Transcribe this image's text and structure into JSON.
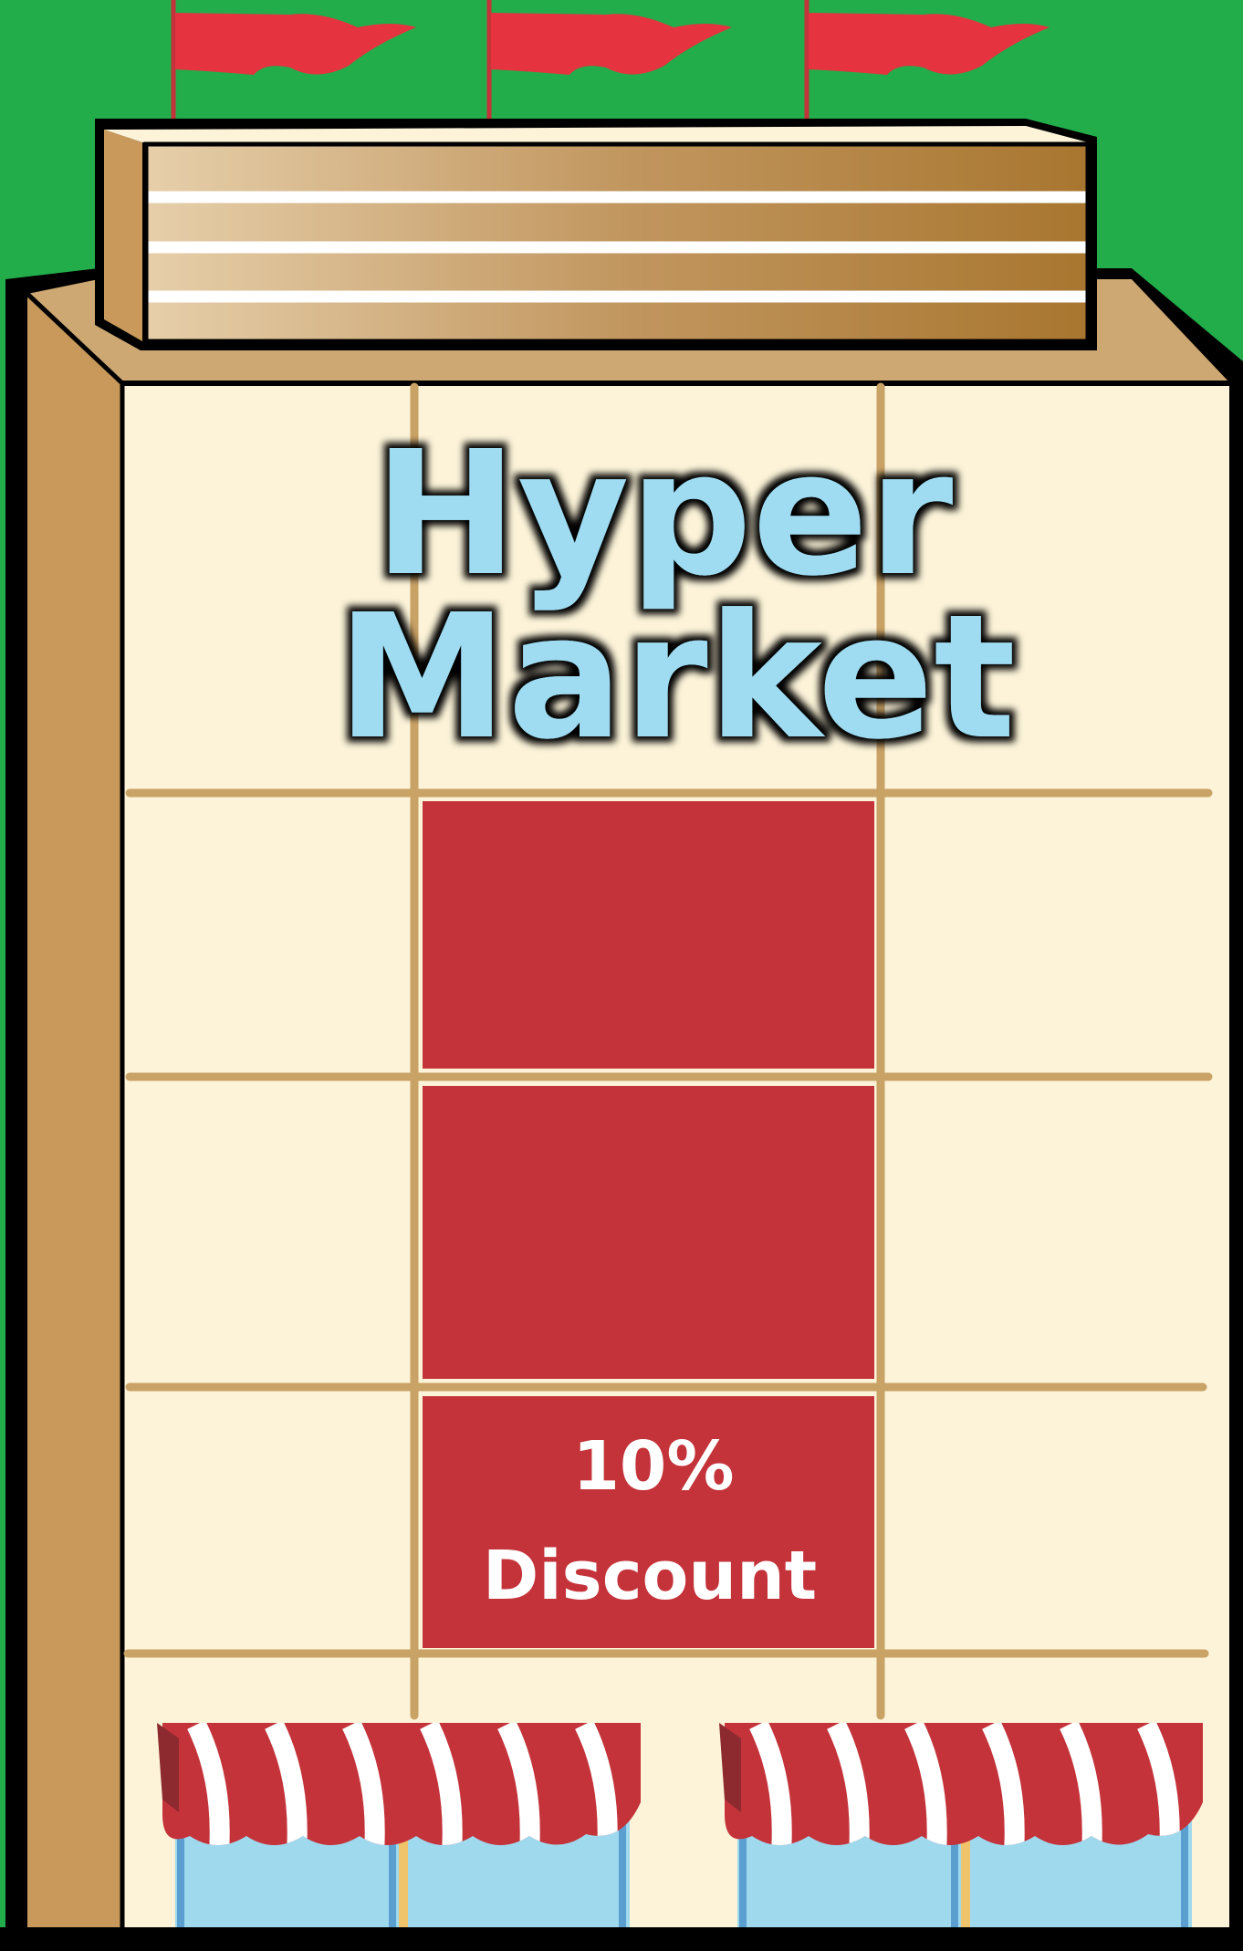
{
  "store": {
    "sign": {
      "line1": "Hyper",
      "line2": "Market"
    },
    "promo": {
      "line1": "10%",
      "line2": "Discount"
    },
    "flag_count": 3,
    "awning_count": 2
  },
  "colors": {
    "background": "#22ad4a",
    "facade": "#fcf3d8",
    "side_wall": "#c8995a",
    "grid_lines": "#c9a266",
    "banner_red": "#c4333a",
    "flag_red": "#e53340",
    "sign_text": "#9fdcf2",
    "awning_red": "#c4333a",
    "window_blue": "#9fd9ee",
    "outline": "#000000"
  }
}
